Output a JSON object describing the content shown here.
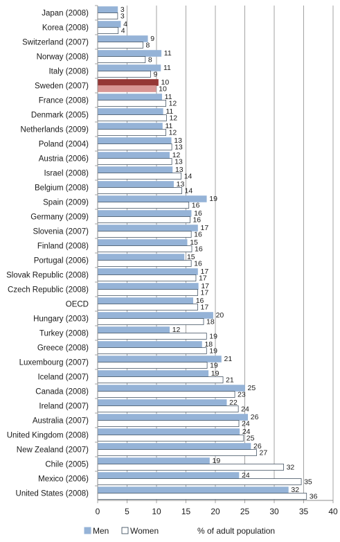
{
  "chart_data": {
    "type": "bar",
    "orientation": "horizontal",
    "categories": [
      "Japan (2008)",
      "Korea (2008)",
      "Switzerland (2007)",
      "Norway (2008)",
      "Italy (2008)",
      "Sweden (2007)",
      "France (2008)",
      "Denmark (2005)",
      "Netherlands (2009)",
      "Poland (2004)",
      "Austria (2006)",
      "Israel (2008)",
      "Belgium (2008)",
      "Spain (2009)",
      "Germany (2009)",
      "Slovenia (2007)",
      "Finland (2008)",
      "Portugal (2006)",
      "Slovak Republic (2008)",
      "Czech Republic (2008)",
      "OECD",
      "Hungary (2003)",
      "Turkey (2008)",
      "Greece (2008)",
      "Luxembourg (2007)",
      "Iceland (2007)",
      "Canada (2008)",
      "Ireland (2007)",
      "Australia (2007)",
      "United Kingdom (2008)",
      "New Zealand (2007)",
      "Chile (2005)",
      "Mexico (2006)",
      "United States (2008)"
    ],
    "series": [
      {
        "name": "Men",
        "color": "#95B3D7",
        "values": [
          3.4,
          3.9,
          8.5,
          10.8,
          10.7,
          10.3,
          10.9,
          11.1,
          11.0,
          12.5,
          12.2,
          12.7,
          12.9,
          18.5,
          15.9,
          17.0,
          15.2,
          14.7,
          17.0,
          17.1,
          16.2,
          19.6,
          12.2,
          17.7,
          21.0,
          18.8,
          25.0,
          21.9,
          25.5,
          24.1,
          26.0,
          19.0,
          24.0,
          32.4
        ],
        "labels": [
          "3",
          "4",
          "9",
          "11",
          "11",
          "10",
          "11",
          "11",
          "11",
          "13",
          "12",
          "13",
          "13",
          "19",
          "16",
          "17",
          "15",
          "15",
          "17",
          "17",
          "16",
          "20",
          "12",
          "18",
          "21",
          "19",
          "25",
          "22",
          "26",
          "24",
          "26",
          "19",
          "24",
          "32"
        ]
      },
      {
        "name": "Women",
        "color": "#ffffff",
        "values": [
          3.4,
          3.5,
          7.7,
          8.1,
          9.0,
          9.9,
          11.6,
          11.7,
          11.6,
          12.6,
          12.6,
          14.2,
          14.3,
          15.5,
          15.7,
          15.9,
          16.0,
          15.9,
          16.7,
          17.0,
          17.0,
          18.0,
          18.5,
          18.5,
          18.6,
          21.3,
          23.3,
          23.9,
          24.0,
          24.8,
          27.0,
          31.6,
          34.6,
          35.5
        ],
        "labels": [
          "3",
          "4",
          "8",
          "8",
          "9",
          "10",
          "12",
          "12",
          "12",
          "13",
          "13",
          "14",
          "14",
          "16",
          "16",
          "16",
          "16",
          "16",
          "17",
          "17",
          "17",
          "18",
          "19",
          "19",
          "19",
          "21",
          "23",
          "24",
          "24",
          "25",
          "27",
          "32",
          "35",
          "36"
        ]
      }
    ],
    "highlight": {
      "category": "Sweden (2007)",
      "men_color": "#953735",
      "women_color": "#D99694"
    },
    "xlim": [
      0,
      40
    ],
    "xticks": [
      0,
      5,
      10,
      15,
      20,
      25,
      30,
      35,
      40
    ],
    "xlabel": "% of adult population",
    "ylabel": "",
    "title": "",
    "grid": true,
    "legend_position": "bottom"
  }
}
